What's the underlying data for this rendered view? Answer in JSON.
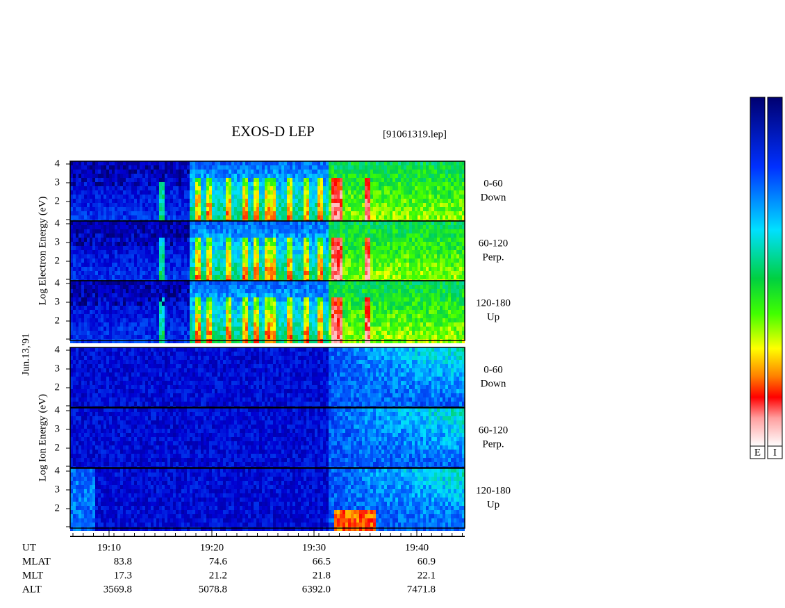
{
  "title": "EXOS-D LEP",
  "file": "[91061319.lep]",
  "date_label": "Jun.13,'91",
  "groups": [
    {
      "ylabel": "Log  Electron  Energy  (eV)",
      "channels": [
        {
          "range": "0-60",
          "dir": "Down"
        },
        {
          "range": "60-120",
          "dir": "Perp."
        },
        {
          "range": "120-180",
          "dir": "Up"
        }
      ]
    },
    {
      "ylabel": "Log  Ion  Energy  (eV)",
      "channels": [
        {
          "range": "0-60",
          "dir": "Down"
        },
        {
          "range": "60-120",
          "dir": "Perp."
        },
        {
          "range": "120-180",
          "dir": "Up"
        }
      ]
    }
  ],
  "yticks": [
    4,
    3,
    2
  ],
  "ephemeris": {
    "labels": [
      "UT",
      "MLAT",
      "MLT",
      "ALT"
    ],
    "rows": [
      [
        "19:10",
        "19:20",
        "19:30",
        "19:40"
      ],
      [
        "83.8",
        "74.6",
        "66.5",
        "60.9"
      ],
      [
        "17.3",
        "21.2",
        "21.8",
        "22.1"
      ],
      [
        "3569.8",
        "5078.8",
        "6392.0",
        "7471.8"
      ]
    ]
  },
  "colorbar_labels": [
    "E",
    "I"
  ]
}
